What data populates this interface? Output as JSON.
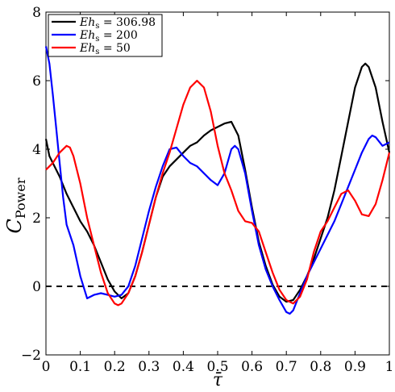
{
  "chart_data": {
    "type": "line",
    "title": "",
    "xlabel": "τ̄",
    "ylabel": "C",
    "ylabel_sub": "Power",
    "xlim": [
      0,
      1
    ],
    "ylim": [
      -2,
      8
    ],
    "xticks": [
      "0",
      "0.1",
      "0.2",
      "0.3",
      "0.4",
      "0.5",
      "0.6",
      "0.7",
      "0.8",
      "0.9",
      "1"
    ],
    "yticks": [
      "−2",
      "0",
      "2",
      "4",
      "6",
      "8"
    ],
    "grid": false,
    "legend_position": "top-left",
    "reference_line": {
      "y": 0,
      "style": "dashed",
      "color": "#000000"
    },
    "series": [
      {
        "name": "Eh_s = 306.98",
        "legend_label": "Ehs = 306.98",
        "color": "#000000",
        "points": [
          [
            0,
            4.3
          ],
          [
            0.01,
            3.8
          ],
          [
            0.02,
            3.6
          ],
          [
            0.04,
            3.2
          ],
          [
            0.06,
            2.7
          ],
          [
            0.08,
            2.3
          ],
          [
            0.1,
            1.9
          ],
          [
            0.12,
            1.6
          ],
          [
            0.14,
            1.2
          ],
          [
            0.16,
            0.7
          ],
          [
            0.18,
            0.2
          ],
          [
            0.2,
            -0.15
          ],
          [
            0.22,
            -0.35
          ],
          [
            0.24,
            -0.2
          ],
          [
            0.26,
            0.3
          ],
          [
            0.28,
            1.0
          ],
          [
            0.3,
            1.8
          ],
          [
            0.32,
            2.6
          ],
          [
            0.34,
            3.2
          ],
          [
            0.36,
            3.5
          ],
          [
            0.38,
            3.7
          ],
          [
            0.4,
            3.9
          ],
          [
            0.42,
            4.1
          ],
          [
            0.44,
            4.2
          ],
          [
            0.46,
            4.4
          ],
          [
            0.48,
            4.55
          ],
          [
            0.5,
            4.65
          ],
          [
            0.52,
            4.75
          ],
          [
            0.54,
            4.8
          ],
          [
            0.56,
            4.4
          ],
          [
            0.58,
            3.4
          ],
          [
            0.6,
            2.3
          ],
          [
            0.62,
            1.3
          ],
          [
            0.64,
            0.6
          ],
          [
            0.66,
            0.05
          ],
          [
            0.68,
            -0.3
          ],
          [
            0.7,
            -0.45
          ],
          [
            0.72,
            -0.4
          ],
          [
            0.74,
            -0.1
          ],
          [
            0.76,
            0.3
          ],
          [
            0.78,
            0.8
          ],
          [
            0.8,
            1.4
          ],
          [
            0.82,
            2.0
          ],
          [
            0.84,
            2.8
          ],
          [
            0.86,
            3.8
          ],
          [
            0.88,
            4.8
          ],
          [
            0.9,
            5.8
          ],
          [
            0.92,
            6.4
          ],
          [
            0.93,
            6.5
          ],
          [
            0.94,
            6.4
          ],
          [
            0.96,
            5.8
          ],
          [
            0.98,
            4.8
          ],
          [
            1.0,
            3.9
          ]
        ]
      },
      {
        "name": "Eh_s = 200",
        "legend_label": "Ehs = 200",
        "color": "#0000ff",
        "points": [
          [
            0,
            7.0
          ],
          [
            0.01,
            6.5
          ],
          [
            0.02,
            5.6
          ],
          [
            0.03,
            4.6
          ],
          [
            0.04,
            3.6
          ],
          [
            0.05,
            2.6
          ],
          [
            0.06,
            1.8
          ],
          [
            0.08,
            1.2
          ],
          [
            0.1,
            0.3
          ],
          [
            0.12,
            -0.35
          ],
          [
            0.14,
            -0.25
          ],
          [
            0.16,
            -0.2
          ],
          [
            0.18,
            -0.25
          ],
          [
            0.2,
            -0.3
          ],
          [
            0.22,
            -0.25
          ],
          [
            0.24,
            0.0
          ],
          [
            0.26,
            0.6
          ],
          [
            0.28,
            1.4
          ],
          [
            0.3,
            2.2
          ],
          [
            0.32,
            2.9
          ],
          [
            0.34,
            3.5
          ],
          [
            0.36,
            4.0
          ],
          [
            0.38,
            4.05
          ],
          [
            0.4,
            3.8
          ],
          [
            0.42,
            3.6
          ],
          [
            0.44,
            3.5
          ],
          [
            0.46,
            3.3
          ],
          [
            0.48,
            3.1
          ],
          [
            0.5,
            2.95
          ],
          [
            0.52,
            3.3
          ],
          [
            0.54,
            4.0
          ],
          [
            0.55,
            4.1
          ],
          [
            0.56,
            4.0
          ],
          [
            0.58,
            3.3
          ],
          [
            0.6,
            2.2
          ],
          [
            0.62,
            1.2
          ],
          [
            0.64,
            0.5
          ],
          [
            0.66,
            0.0
          ],
          [
            0.68,
            -0.4
          ],
          [
            0.7,
            -0.75
          ],
          [
            0.71,
            -0.8
          ],
          [
            0.72,
            -0.7
          ],
          [
            0.74,
            -0.2
          ],
          [
            0.76,
            0.3
          ],
          [
            0.78,
            0.7
          ],
          [
            0.8,
            1.1
          ],
          [
            0.82,
            1.5
          ],
          [
            0.84,
            1.9
          ],
          [
            0.86,
            2.4
          ],
          [
            0.88,
            2.9
          ],
          [
            0.9,
            3.4
          ],
          [
            0.92,
            3.9
          ],
          [
            0.94,
            4.3
          ],
          [
            0.95,
            4.4
          ],
          [
            0.96,
            4.35
          ],
          [
            0.98,
            4.1
          ],
          [
            1.0,
            4.2
          ]
        ]
      },
      {
        "name": "Eh_s = 50",
        "legend_label": "Ehs = 50",
        "color": "#ff0000",
        "points": [
          [
            0,
            3.4
          ],
          [
            0.01,
            3.5
          ],
          [
            0.02,
            3.6
          ],
          [
            0.04,
            3.9
          ],
          [
            0.06,
            4.1
          ],
          [
            0.07,
            4.05
          ],
          [
            0.08,
            3.8
          ],
          [
            0.1,
            3.0
          ],
          [
            0.12,
            2.0
          ],
          [
            0.14,
            1.2
          ],
          [
            0.16,
            0.4
          ],
          [
            0.18,
            -0.2
          ],
          [
            0.2,
            -0.5
          ],
          [
            0.21,
            -0.55
          ],
          [
            0.22,
            -0.5
          ],
          [
            0.24,
            -0.2
          ],
          [
            0.26,
            0.3
          ],
          [
            0.28,
            1.0
          ],
          [
            0.3,
            1.8
          ],
          [
            0.32,
            2.6
          ],
          [
            0.34,
            3.3
          ],
          [
            0.36,
            3.9
          ],
          [
            0.38,
            4.6
          ],
          [
            0.4,
            5.3
          ],
          [
            0.42,
            5.8
          ],
          [
            0.44,
            6.0
          ],
          [
            0.46,
            5.8
          ],
          [
            0.48,
            5.1
          ],
          [
            0.5,
            4.1
          ],
          [
            0.52,
            3.3
          ],
          [
            0.54,
            2.8
          ],
          [
            0.56,
            2.2
          ],
          [
            0.58,
            1.9
          ],
          [
            0.6,
            1.85
          ],
          [
            0.62,
            1.6
          ],
          [
            0.64,
            1.0
          ],
          [
            0.66,
            0.4
          ],
          [
            0.68,
            -0.1
          ],
          [
            0.7,
            -0.4
          ],
          [
            0.72,
            -0.5
          ],
          [
            0.74,
            -0.3
          ],
          [
            0.76,
            0.2
          ],
          [
            0.78,
            1.0
          ],
          [
            0.8,
            1.6
          ],
          [
            0.82,
            1.9
          ],
          [
            0.84,
            2.3
          ],
          [
            0.86,
            2.7
          ],
          [
            0.88,
            2.8
          ],
          [
            0.9,
            2.5
          ],
          [
            0.92,
            2.1
          ],
          [
            0.94,
            2.05
          ],
          [
            0.96,
            2.4
          ],
          [
            0.98,
            3.1
          ],
          [
            1.0,
            3.9
          ]
        ]
      }
    ]
  }
}
